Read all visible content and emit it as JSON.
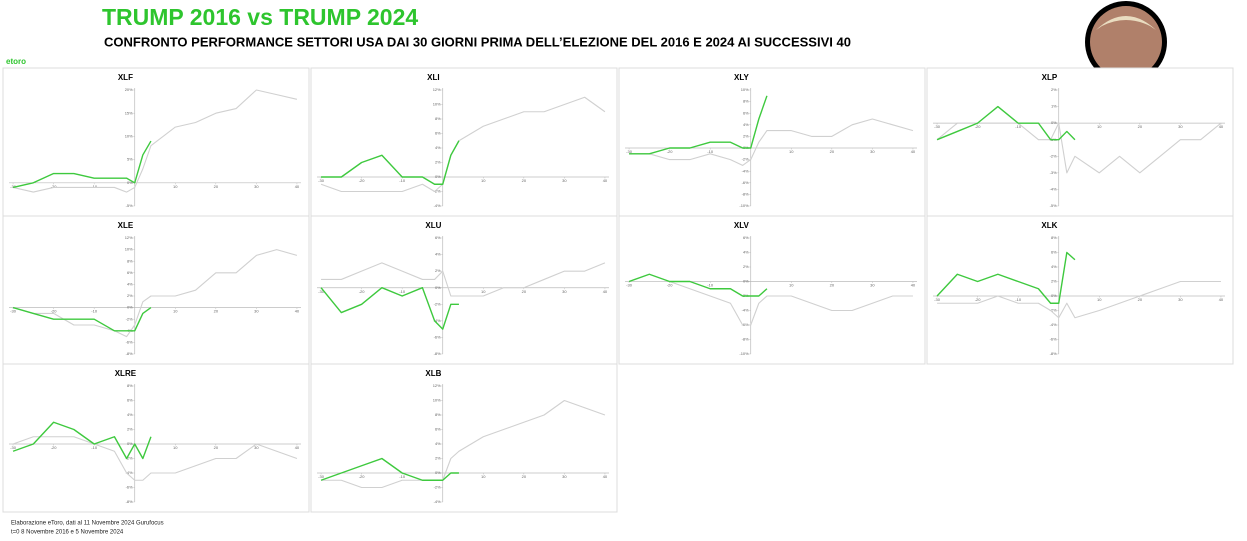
{
  "header": {
    "title": "TRUMP 2016 vs TRUMP 2024",
    "subtitle": "CONFRONTO PERFORMANCE SETTORI USA DAI 30 GIORNI PRIMA DELL’ELEZIONE DEL 2016 E 2024 AI SUCCESSIVI 40",
    "logo": "etoro"
  },
  "footer": [
    "Elaborazione eToro, dati al 11 Novembre 2024 Gurufocus",
    "t=0  8 Novembre 2016 e 5 Novembre 2024"
  ],
  "chart_data": [
    {
      "type": "line",
      "title": "XLF",
      "x": [
        -30,
        -25,
        -20,
        -15,
        -10,
        -5,
        -2,
        0,
        2,
        4,
        10,
        15,
        20,
        25,
        30,
        35,
        40
      ],
      "xlim": [
        -31,
        41
      ],
      "xticks": [
        -30,
        -20,
        -10,
        10,
        20,
        30,
        40
      ],
      "ylim": [
        -5,
        20
      ],
      "yticks": [
        {
          "value": -5,
          "label": "-5%"
        },
        {
          "value": 0,
          "label": "0%"
        },
        {
          "value": 5,
          "label": "5%"
        },
        {
          "value": 10,
          "label": "10%"
        },
        {
          "value": 15,
          "label": "15%"
        },
        {
          "value": 20,
          "label": "20%"
        }
      ],
      "series": [
        {
          "color": "#d0d0d0",
          "values": [
            -1,
            -2,
            -1,
            -1,
            -1,
            -1,
            -2,
            -1,
            3,
            8,
            12,
            13,
            15,
            16,
            20,
            19,
            18
          ]
        },
        {
          "color": "#3ec93e",
          "values": [
            -1,
            0,
            2,
            2,
            1,
            1,
            1,
            0,
            6,
            9,
            null,
            null,
            null,
            null,
            null,
            null,
            null
          ]
        }
      ]
    },
    {
      "type": "line",
      "title": "XLI",
      "x": [
        -30,
        -25,
        -20,
        -15,
        -10,
        -5,
        -2,
        0,
        2,
        4,
        10,
        15,
        20,
        25,
        30,
        35,
        40
      ],
      "xlim": [
        -31,
        41
      ],
      "xticks": [
        -30,
        -20,
        -10,
        10,
        20,
        30,
        40
      ],
      "ylim": [
        -4,
        12
      ],
      "yticks": [
        {
          "value": -4,
          "label": "-4%"
        },
        {
          "value": -2,
          "label": "-2%"
        },
        {
          "value": 0,
          "label": "0%"
        },
        {
          "value": 2,
          "label": "2%"
        },
        {
          "value": 4,
          "label": "4%"
        },
        {
          "value": 6,
          "label": "6%"
        },
        {
          "value": 8,
          "label": "8%"
        },
        {
          "value": 10,
          "label": "10%"
        },
        {
          "value": 12,
          "label": "12%"
        }
      ],
      "series": [
        {
          "color": "#d0d0d0",
          "values": [
            -1,
            -2,
            -2,
            -2,
            -2,
            -1,
            -2,
            -1,
            3,
            5,
            7,
            8,
            9,
            9,
            10,
            11,
            9
          ]
        },
        {
          "color": "#3ec93e",
          "values": [
            0,
            0,
            2,
            3,
            0,
            0,
            -1,
            -1,
            3,
            5,
            null,
            null,
            null,
            null,
            null,
            null,
            null
          ]
        }
      ]
    },
    {
      "type": "line",
      "title": "XLY",
      "x": [
        -30,
        -25,
        -20,
        -15,
        -10,
        -5,
        -2,
        0,
        2,
        4,
        10,
        15,
        20,
        25,
        30,
        35,
        40
      ],
      "xlim": [
        -31,
        41
      ],
      "xticks": [
        -30,
        -20,
        -10,
        10,
        20,
        30,
        40
      ],
      "ylim": [
        -10,
        10
      ],
      "yticks": [
        {
          "value": -10,
          "label": "-10%"
        },
        {
          "value": -8,
          "label": "-8%"
        },
        {
          "value": -6,
          "label": "-6%"
        },
        {
          "value": -4,
          "label": "-4%"
        },
        {
          "value": -2,
          "label": "-2%"
        },
        {
          "value": 0,
          "label": "0%"
        },
        {
          "value": 2,
          "label": "2%"
        },
        {
          "value": 4,
          "label": "4%"
        },
        {
          "value": 6,
          "label": "6%"
        },
        {
          "value": 8,
          "label": "8%"
        },
        {
          "value": 10,
          "label": "10%"
        }
      ],
      "series": [
        {
          "color": "#d0d0d0",
          "values": [
            -1,
            -1,
            -2,
            -2,
            -1,
            -2,
            -3,
            -2,
            1,
            3,
            3,
            2,
            2,
            4,
            5,
            4,
            3
          ]
        },
        {
          "color": "#3ec93e",
          "values": [
            -1,
            -1,
            0,
            0,
            1,
            1,
            0,
            0,
            5,
            9,
            null,
            null,
            null,
            null,
            null,
            null,
            null
          ]
        }
      ]
    },
    {
      "type": "line",
      "title": "XLP",
      "x": [
        -30,
        -25,
        -20,
        -15,
        -10,
        -5,
        -2,
        0,
        2,
        4,
        10,
        15,
        20,
        25,
        30,
        35,
        40
      ],
      "xlim": [
        -31,
        41
      ],
      "xticks": [
        -30,
        -20,
        -10,
        10,
        20,
        30,
        40
      ],
      "ylim": [
        -5,
        2
      ],
      "yticks": [
        {
          "value": -5,
          "label": "-5%"
        },
        {
          "value": -4,
          "label": "-4%"
        },
        {
          "value": -3,
          "label": "-3%"
        },
        {
          "value": -2,
          "label": "-2%"
        },
        {
          "value": -1,
          "label": "-1%"
        },
        {
          "value": 0,
          "label": "0%"
        },
        {
          "value": 1,
          "label": "1%"
        },
        {
          "value": 2,
          "label": "2%"
        }
      ],
      "series": [
        {
          "color": "#d0d0d0",
          "values": [
            -1,
            0,
            0,
            0,
            0,
            -1,
            -1,
            0,
            -3,
            -2,
            -3,
            -2,
            -3,
            -2,
            -1,
            -1,
            0
          ]
        },
        {
          "color": "#3ec93e",
          "values": [
            -1,
            -0.5,
            0,
            1,
            0,
            0,
            -1,
            -1,
            -0.5,
            -1,
            null,
            null,
            null,
            null,
            null,
            null,
            null
          ]
        }
      ]
    },
    {
      "type": "line",
      "title": "XLE",
      "x": [
        -30,
        -25,
        -20,
        -15,
        -10,
        -5,
        -2,
        0,
        2,
        4,
        10,
        15,
        20,
        25,
        30,
        35,
        40
      ],
      "xlim": [
        -31,
        41
      ],
      "xticks": [
        -30,
        -20,
        -10,
        10,
        20,
        30,
        40
      ],
      "ylim": [
        -8,
        12
      ],
      "yticks": [
        {
          "value": -8,
          "label": "-8%"
        },
        {
          "value": -6,
          "label": "-6%"
        },
        {
          "value": -4,
          "label": "-4%"
        },
        {
          "value": -2,
          "label": "-2%"
        },
        {
          "value": 0,
          "label": "0%"
        },
        {
          "value": 2,
          "label": "2%"
        },
        {
          "value": 4,
          "label": "4%"
        },
        {
          "value": 6,
          "label": "6%"
        },
        {
          "value": 8,
          "label": "8%"
        },
        {
          "value": 10,
          "label": "10%"
        },
        {
          "value": 12,
          "label": "12%"
        }
      ],
      "series": [
        {
          "color": "#d0d0d0",
          "values": [
            0,
            -1,
            -1,
            -3,
            -3,
            -4,
            -5,
            -3,
            1,
            2,
            2,
            3,
            6,
            6,
            9,
            10,
            9
          ]
        },
        {
          "color": "#3ec93e",
          "values": [
            0,
            -1,
            -2,
            -2,
            -2,
            -4,
            -4,
            -4,
            -1,
            0,
            null,
            null,
            null,
            null,
            null,
            null,
            null
          ]
        }
      ]
    },
    {
      "type": "line",
      "title": "XLU",
      "x": [
        -30,
        -25,
        -20,
        -15,
        -10,
        -5,
        -2,
        0,
        2,
        4,
        10,
        15,
        20,
        25,
        30,
        35,
        40
      ],
      "xlim": [
        -31,
        41
      ],
      "xticks": [
        -30,
        -20,
        -10,
        10,
        20,
        30,
        40
      ],
      "ylim": [
        -8,
        6
      ],
      "yticks": [
        {
          "value": -8,
          "label": "-8%"
        },
        {
          "value": -6,
          "label": "-6%"
        },
        {
          "value": -4,
          "label": "-4%"
        },
        {
          "value": -2,
          "label": "-2%"
        },
        {
          "value": 0,
          "label": "0%"
        },
        {
          "value": 2,
          "label": "2%"
        },
        {
          "value": 4,
          "label": "4%"
        },
        {
          "value": 6,
          "label": "6%"
        }
      ],
      "series": [
        {
          "color": "#d0d0d0",
          "values": [
            1,
            1,
            2,
            3,
            2,
            1,
            1,
            2,
            -1,
            -1,
            -1,
            0,
            0,
            1,
            2,
            2,
            3
          ]
        },
        {
          "color": "#3ec93e",
          "values": [
            0,
            -3,
            -2,
            0,
            -1,
            0,
            -4,
            -5,
            -2,
            -2,
            null,
            null,
            null,
            null,
            null,
            null,
            null
          ]
        }
      ]
    },
    {
      "type": "line",
      "title": "XLV",
      "x": [
        -30,
        -25,
        -20,
        -15,
        -10,
        -5,
        -2,
        0,
        2,
        4,
        10,
        15,
        20,
        25,
        30,
        35,
        40
      ],
      "xlim": [
        -31,
        41
      ],
      "xticks": [
        -30,
        -20,
        -10,
        10,
        20,
        30,
        40
      ],
      "ylim": [
        -10,
        6
      ],
      "yticks": [
        {
          "value": -10,
          "label": "-10%"
        },
        {
          "value": -8,
          "label": "-8%"
        },
        {
          "value": -6,
          "label": "-6%"
        },
        {
          "value": -4,
          "label": "-4%"
        },
        {
          "value": -2,
          "label": "-2%"
        },
        {
          "value": 0,
          "label": "0%"
        },
        {
          "value": 2,
          "label": "2%"
        },
        {
          "value": 4,
          "label": "4%"
        },
        {
          "value": 6,
          "label": "6%"
        }
      ],
      "series": [
        {
          "color": "#d0d0d0",
          "values": [
            0,
            0,
            0,
            -1,
            -2,
            -3,
            -6,
            -6,
            -3,
            -2,
            -2,
            -3,
            -4,
            -4,
            -3,
            -2,
            -2
          ]
        },
        {
          "color": "#3ec93e",
          "values": [
            0,
            1,
            0,
            0,
            -1,
            -1,
            -2,
            -2,
            -2,
            -1,
            null,
            null,
            null,
            null,
            null,
            null,
            null
          ]
        }
      ]
    },
    {
      "type": "line",
      "title": "XLK",
      "x": [
        -30,
        -25,
        -20,
        -15,
        -10,
        -5,
        -2,
        0,
        2,
        4,
        10,
        15,
        20,
        25,
        30,
        35,
        40
      ],
      "xlim": [
        -31,
        41
      ],
      "xticks": [
        -30,
        -20,
        -10,
        10,
        20,
        30,
        40
      ],
      "ylim": [
        -8,
        8
      ],
      "yticks": [
        {
          "value": -8,
          "label": "-8%"
        },
        {
          "value": -6,
          "label": "-6%"
        },
        {
          "value": -4,
          "label": "-4%"
        },
        {
          "value": -2,
          "label": "-2%"
        },
        {
          "value": 0,
          "label": "0%"
        },
        {
          "value": 2,
          "label": "2%"
        },
        {
          "value": 4,
          "label": "4%"
        },
        {
          "value": 6,
          "label": "6%"
        },
        {
          "value": 8,
          "label": "8%"
        }
      ],
      "series": [
        {
          "color": "#d0d0d0",
          "values": [
            -1,
            -1,
            -1,
            0,
            -1,
            -1,
            -2,
            -3,
            -1,
            -3,
            -2,
            -1,
            0,
            1,
            2,
            2,
            2
          ]
        },
        {
          "color": "#3ec93e",
          "values": [
            0,
            3,
            2,
            3,
            2,
            1,
            -1,
            -1,
            6,
            5,
            null,
            null,
            null,
            null,
            null,
            null,
            null
          ]
        }
      ]
    },
    {
      "type": "line",
      "title": "XLRE",
      "x": [
        -30,
        -25,
        -20,
        -15,
        -10,
        -5,
        -2,
        0,
        2,
        4,
        10,
        15,
        20,
        25,
        30,
        35,
        40
      ],
      "xlim": [
        -31,
        41
      ],
      "xticks": [
        -30,
        -20,
        -10,
        10,
        20,
        30,
        40
      ],
      "ylim": [
        -8,
        8
      ],
      "yticks": [
        {
          "value": -8,
          "label": "-8%"
        },
        {
          "value": -6,
          "label": "-6%"
        },
        {
          "value": -4,
          "label": "-4%"
        },
        {
          "value": -2,
          "label": "-2%"
        },
        {
          "value": 0,
          "label": "0%"
        },
        {
          "value": 2,
          "label": "2%"
        },
        {
          "value": 4,
          "label": "4%"
        },
        {
          "value": 6,
          "label": "6%"
        },
        {
          "value": 8,
          "label": "8%"
        }
      ],
      "series": [
        {
          "color": "#d0d0d0",
          "values": [
            0,
            1,
            1,
            1,
            0,
            -1,
            -4,
            -5,
            -5,
            -4,
            -4,
            -3,
            -2,
            -2,
            0,
            -1,
            -2
          ]
        },
        {
          "color": "#3ec93e",
          "values": [
            -1,
            0,
            3,
            2,
            0,
            1,
            -2,
            0,
            -2,
            1,
            null,
            null,
            null,
            null,
            null,
            null,
            null
          ]
        }
      ]
    },
    {
      "type": "line",
      "title": "XLB",
      "x": [
        -30,
        -25,
        -20,
        -15,
        -10,
        -5,
        -2,
        0,
        2,
        4,
        10,
        15,
        20,
        25,
        30,
        35,
        40
      ],
      "xlim": [
        -31,
        41
      ],
      "xticks": [
        -30,
        -20,
        -10,
        10,
        20,
        30,
        40
      ],
      "ylim": [
        -4,
        12
      ],
      "yticks": [
        {
          "value": -4,
          "label": "-4%"
        },
        {
          "value": -2,
          "label": "-2%"
        },
        {
          "value": 0,
          "label": "0%"
        },
        {
          "value": 2,
          "label": "2%"
        },
        {
          "value": 4,
          "label": "4%"
        },
        {
          "value": 6,
          "label": "6%"
        },
        {
          "value": 8,
          "label": "8%"
        },
        {
          "value": 10,
          "label": "10%"
        },
        {
          "value": 12,
          "label": "12%"
        }
      ],
      "series": [
        {
          "color": "#d0d0d0",
          "values": [
            -1,
            -1,
            -2,
            -2,
            -1,
            -1,
            -1,
            -1,
            2,
            3,
            5,
            6,
            7,
            8,
            10,
            9,
            8
          ]
        },
        {
          "color": "#3ec93e",
          "values": [
            -1,
            0,
            1,
            2,
            0,
            -1,
            -1,
            -1,
            0,
            0,
            null,
            null,
            null,
            null,
            null,
            null,
            null
          ]
        }
      ]
    }
  ]
}
